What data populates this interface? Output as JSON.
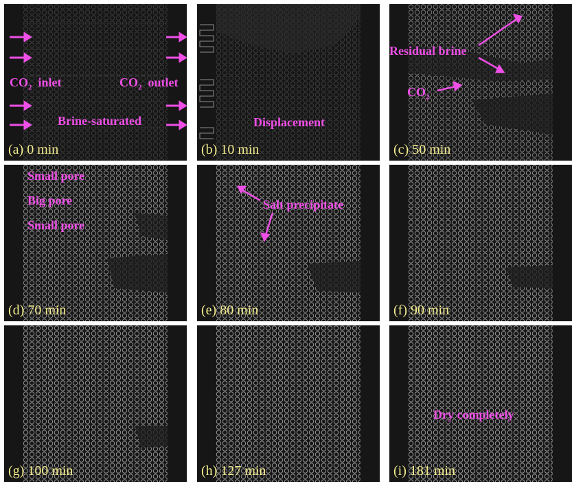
{
  "figure": {
    "panels": [
      {
        "id": "a",
        "caption": "(a) 0 min",
        "labels": {
          "inlet_main": "CO",
          "inlet_sub": "2",
          "inlet_suffix": "inlet",
          "outlet_main": "CO",
          "outlet_sub": "2",
          "outlet_suffix": "outlet",
          "state": "Brine-saturated"
        }
      },
      {
        "id": "b",
        "caption": "(b) 10 min",
        "labels": {
          "state": "Displacement"
        }
      },
      {
        "id": "c",
        "caption": "(c) 50 min",
        "labels": {
          "residual": "Residual brine",
          "co2_main": "CO",
          "co2_sub": "2"
        }
      },
      {
        "id": "d",
        "caption": "(d) 70 min",
        "labels": {
          "small_pore_top": "Small pore",
          "big_pore": "Big  pore",
          "small_pore_bottom": "Small pore"
        }
      },
      {
        "id": "e",
        "caption": "(e) 80 min",
        "labels": {
          "salt": "Salt precipitate"
        }
      },
      {
        "id": "f",
        "caption": "(f) 90 min",
        "labels": {}
      },
      {
        "id": "g",
        "caption": "(g) 100 min",
        "labels": {}
      },
      {
        "id": "h",
        "caption": "(h) 127 min",
        "labels": {}
      },
      {
        "id": "i",
        "caption": "(i) 181 min",
        "labels": {
          "dry": "Dry completely"
        }
      }
    ]
  },
  "colors": {
    "annotation": "#ee4fe6",
    "caption": "#f3ec8c",
    "background": "#161616",
    "pore_line": "#9a9a9a"
  }
}
